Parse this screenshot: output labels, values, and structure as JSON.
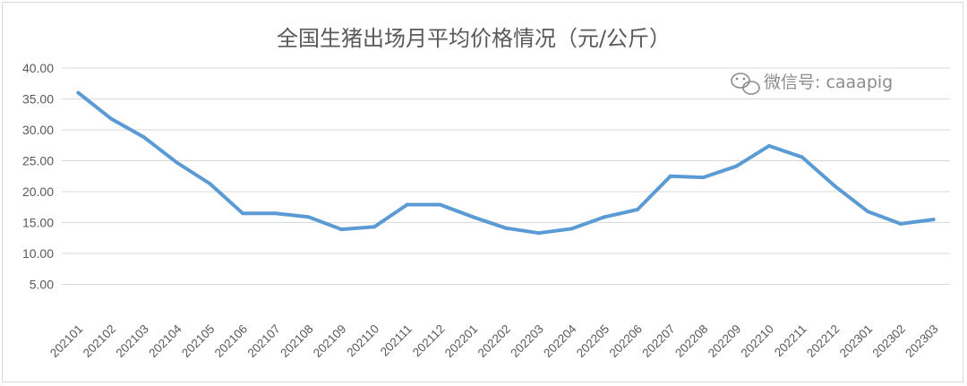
{
  "watermark": {
    "text": "微信号: caaapig",
    "icon": "wechat-icon"
  },
  "chart_data": {
    "type": "line",
    "title": "全国生猪出场月平均价格情况（元/公斤）",
    "xlabel": "",
    "ylabel": "",
    "ylim": [
      0,
      40
    ],
    "yticks": [
      "5.00",
      "10.00",
      "15.00",
      "20.00",
      "25.00",
      "30.00",
      "35.00",
      "40.00"
    ],
    "grid": true,
    "legend": "none",
    "series_color": "#5b9bd5",
    "categories": [
      "202101",
      "202102",
      "202103",
      "202104",
      "202105",
      "202106",
      "202107",
      "202108",
      "202109",
      "202110",
      "202111",
      "202112",
      "202201",
      "202202",
      "202203",
      "202204",
      "202205",
      "202206",
      "202207",
      "202208",
      "202209",
      "202210",
      "202211",
      "202212",
      "202301",
      "202302",
      "202303"
    ],
    "series": [
      {
        "values": [
          36.0,
          31.8,
          28.8,
          24.7,
          21.3,
          16.5,
          16.5,
          15.9,
          13.9,
          14.3,
          17.9,
          17.9,
          15.9,
          14.1,
          13.3,
          14.0,
          15.9,
          17.1,
          22.5,
          22.3,
          24.1,
          27.4,
          25.6,
          20.9,
          16.8,
          14.8,
          15.5
        ]
      }
    ]
  }
}
